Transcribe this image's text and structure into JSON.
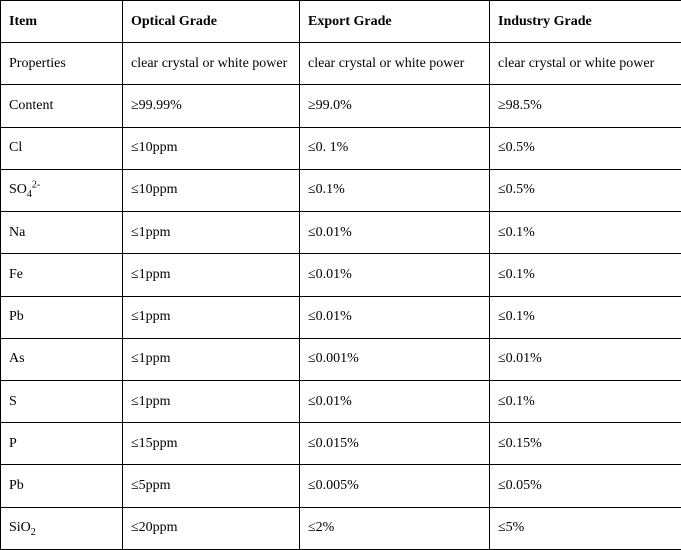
{
  "table": {
    "columns": [
      "Item",
      "Optical Grade",
      "Export Grade",
      "Industry Grade"
    ],
    "rows": [
      {
        "item": "Properties",
        "optical": "clear crystal or white power",
        "export": "clear crystal or white power",
        "industry": "clear crystal or white power"
      },
      {
        "item": "Content",
        "optical": "≥99.99%",
        "export": "≥99.0%",
        "industry": "≥98.5%"
      },
      {
        "item": "Cl",
        "optical": "≤10ppm",
        "export": "≤0. 1%",
        "industry": "≤0.5%"
      },
      {
        "item": "SO",
        "item_sub": "4",
        "item_sup": "2-",
        "optical": "≤10ppm",
        "export": "≤0.1%",
        "industry": "≤0.5%"
      },
      {
        "item": "Na",
        "optical": "≤1ppm",
        "export": "≤0.01%",
        "industry": "≤0.1%"
      },
      {
        "item": "Fe",
        "optical": "≤1ppm",
        "export": "≤0.01%",
        "industry": "≤0.1%"
      },
      {
        "item": "Pb",
        "optical": "≤1ppm",
        "export": "≤0.01%",
        "industry": "≤0.1%"
      },
      {
        "item": "As",
        "optical": "≤1ppm",
        "export": "≤0.001%",
        "industry": "≤0.01%"
      },
      {
        "item": "S",
        "optical": "≤1ppm",
        "export": "≤0.01%",
        "industry": "≤0.1%"
      },
      {
        "item": "P",
        "optical": "≤15ppm",
        "export": "≤0.015%",
        "industry": "≤0.15%"
      },
      {
        "item": "Pb",
        "optical": "≤5ppm",
        "export": "≤0.005%",
        "industry": "≤0.05%"
      },
      {
        "item": "SiO",
        "item_sub": "2",
        "optical": "≤20ppm",
        "export": "≤2%",
        "industry": "≤5%"
      }
    ]
  }
}
